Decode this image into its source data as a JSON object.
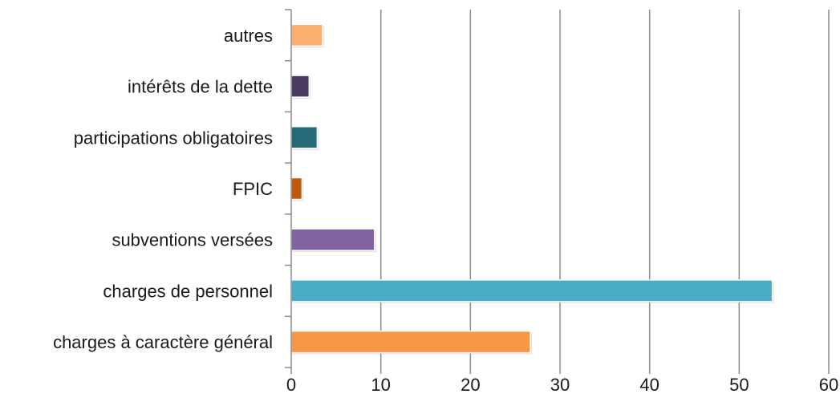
{
  "chart_data": {
    "type": "bar",
    "orientation": "horizontal",
    "title": "",
    "xlabel": "",
    "ylabel": "",
    "xlim": [
      0,
      60
    ],
    "x_ticks": [
      0,
      10,
      20,
      30,
      40,
      50,
      60
    ],
    "grid": true,
    "legend": "none",
    "categories": [
      "charges à caractère général",
      "charges de personnel",
      "subventions versées",
      "FPIC",
      "participations obligatoires",
      "intérêts de la dette",
      "autres"
    ],
    "values": [
      26.7,
      53.7,
      9.3,
      1.2,
      2.9,
      2.0,
      3.5
    ],
    "colors": [
      "#F79646",
      "#4BACC6",
      "#8064A2",
      "#C0580E",
      "#266A7A",
      "#4A3B63",
      "#FAAF6F"
    ]
  }
}
